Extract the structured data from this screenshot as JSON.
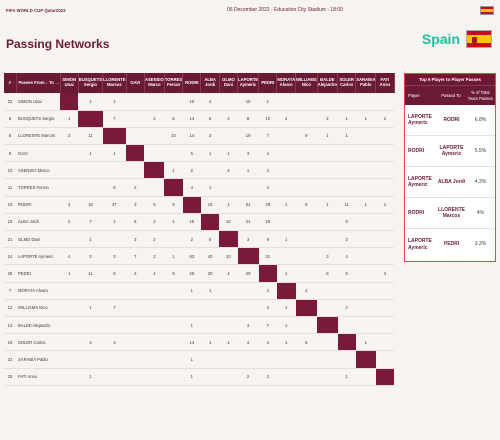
{
  "header": {
    "brand": "FIFA WORLD CUP Qatar2022",
    "match_info": "06 December 2022 - Education City Stadium - 18:00"
  },
  "page_title": "Passing Networks",
  "team": {
    "name": "Spain",
    "flag": "spain-flag"
  },
  "matrix": {
    "col_num": "#",
    "col_name": "Passes From  ↓  To  →",
    "players": [
      {
        "num": "23",
        "name": "SIMON Unai",
        "col": "SIMON Unai"
      },
      {
        "num": "5",
        "name": "BUSQUETS Sergio",
        "col": "BUSQUETS Sergio"
      },
      {
        "num": "6",
        "name": "LLORENTE Marcos",
        "col": "LLORENTE Marcos"
      },
      {
        "num": "9",
        "name": "GAVI",
        "col": "GAVI"
      },
      {
        "num": "10",
        "name": "ASENSIO Marco",
        "col": "ASENSIO Marco"
      },
      {
        "num": "11",
        "name": "TORRES Ferran",
        "col": "TORRES Ferran"
      },
      {
        "num": "16",
        "name": "RODRI",
        "col": "RODRI"
      },
      {
        "num": "18",
        "name": "ALBA Jordi",
        "col": "ALBA Jordi"
      },
      {
        "num": "21",
        "name": "OLMO Dani",
        "col": "OLMO Dani"
      },
      {
        "num": "24",
        "name": "LAPORTE Aymeric",
        "col": "LAPORTE Aymeric"
      },
      {
        "num": "26",
        "name": "PEDRI",
        "col": "PEDRI"
      },
      {
        "num": "7",
        "name": "MORATA Alvaro",
        "col": "MORATA Alvaro"
      },
      {
        "num": "12",
        "name": "WILLIAMS Nico",
        "col": "WILLIAMS Nico"
      },
      {
        "num": "14",
        "name": "BALDE Alejandro",
        "col": "BALDE Alejandro"
      },
      {
        "num": "19",
        "name": "SOLER Carlos",
        "col": "SOLER Carlos"
      },
      {
        "num": "22",
        "name": "SARABIA Pablo",
        "col": "SARABIA Pablo"
      },
      {
        "num": "25",
        "name": "FATI Ansu",
        "col": "FATI Ansu"
      }
    ],
    "values": [
      [
        "-",
        "1",
        "1",
        "-",
        "-",
        "-",
        "10",
        "2",
        "-",
        "15",
        "1",
        "-",
        "-",
        "-",
        "-",
        "-",
        "-"
      ],
      [
        "1",
        "-",
        "7",
        "-",
        "2",
        "6",
        "14",
        "6",
        "3",
        "8",
        "10",
        "2",
        "-",
        "2",
        "1",
        "1",
        "2"
      ],
      [
        "2",
        "11",
        "-",
        "-",
        "-",
        "10",
        "14",
        "3",
        "-",
        "19",
        "7",
        "-",
        "9",
        "1",
        "1",
        "-",
        "-"
      ],
      [
        "-",
        "1",
        "1",
        "-",
        "-",
        "-",
        "5",
        "1",
        "1",
        "3",
        "4",
        "-",
        "-",
        "-",
        "-",
        "-",
        "-"
      ],
      [
        "-",
        "-",
        "-",
        "-",
        "-",
        "1",
        "2",
        "-",
        "4",
        "1",
        "2",
        "-",
        "-",
        "-",
        "-",
        "-",
        "-"
      ],
      [
        "-",
        "-",
        "6",
        "2",
        "-",
        "-",
        "4",
        "1",
        "-",
        "-",
        "4",
        "-",
        "-",
        "-",
        "-",
        "-",
        "-"
      ],
      [
        "3",
        "18",
        "37",
        "3",
        "5",
        "8",
        "-",
        "16",
        "1",
        "51",
        "29",
        "1",
        "6",
        "1",
        "11",
        "1",
        "1"
      ],
      [
        "2",
        "7",
        "1",
        "6",
        "2",
        "1",
        "15",
        "-",
        "10",
        "21",
        "19",
        "-",
        "-",
        "-",
        "5",
        "-",
        "-"
      ],
      [
        "-",
        "1",
        "-",
        "3",
        "2",
        "-",
        "2",
        "8",
        "-",
        "3",
        "9",
        "1",
        "-",
        "-",
        "2",
        "-",
        "-"
      ],
      [
        "4",
        "3",
        "3",
        "7",
        "2",
        "1",
        "63",
        "40",
        "10",
        "-",
        "31",
        "-",
        "-",
        "3",
        "4",
        "-",
        "-"
      ],
      [
        "1",
        "11",
        "6",
        "2",
        "4",
        "8",
        "29",
        "20",
        "4",
        "29",
        "-",
        "1",
        "-",
        "8",
        "5",
        "-",
        "3"
      ],
      [
        "-",
        "-",
        "-",
        "-",
        "-",
        "-",
        "1",
        "1",
        "-",
        "-",
        "2",
        "-",
        "2",
        "-",
        "-",
        "-",
        "-"
      ],
      [
        "-",
        "1",
        "7",
        "-",
        "-",
        "-",
        "-",
        "-",
        "-",
        "-",
        "3",
        "1",
        "-",
        "-",
        "2",
        "-",
        "-"
      ],
      [
        "-",
        "-",
        "-",
        "-",
        "-",
        "-",
        "1",
        "-",
        "-",
        "3",
        "7",
        "1",
        "-",
        "-",
        "-",
        "-",
        "-"
      ],
      [
        "-",
        "3",
        "3",
        "-",
        "-",
        "-",
        "14",
        "1",
        "1",
        "4",
        "4",
        "1",
        "5",
        "-",
        "-",
        "1",
        "-"
      ],
      [
        "-",
        "-",
        "-",
        "-",
        "-",
        "-",
        "1",
        "-",
        "-",
        "-",
        "-",
        "-",
        "-",
        "-",
        "-",
        "-",
        "-"
      ],
      [
        "-",
        "1",
        "-",
        "-",
        "-",
        "-",
        "1",
        "-",
        "-",
        "2",
        "2",
        "-",
        "-",
        "-",
        "1",
        "-",
        "-"
      ]
    ]
  },
  "top_passes": {
    "title": "Top 5 Player to Player Passes",
    "headers": [
      "Player",
      "Passed To",
      "% of Total Team Passes"
    ],
    "rows": [
      {
        "player": "LAPORTE Aymeric",
        "to": "RODRI",
        "pct": "6.8%"
      },
      {
        "player": "RODRI",
        "to": "LAPORTE Aymeric",
        "pct": "5.5%"
      },
      {
        "player": "LAPORTE Aymeric",
        "to": "ALBA Jordi",
        "pct": "4.3%"
      },
      {
        "player": "RODRI",
        "to": "LLORENTE Marcos",
        "pct": "4%"
      },
      {
        "player": "LAPORTE Aymeric",
        "to": "PEDRI",
        "pct": "3.3%"
      }
    ]
  }
}
